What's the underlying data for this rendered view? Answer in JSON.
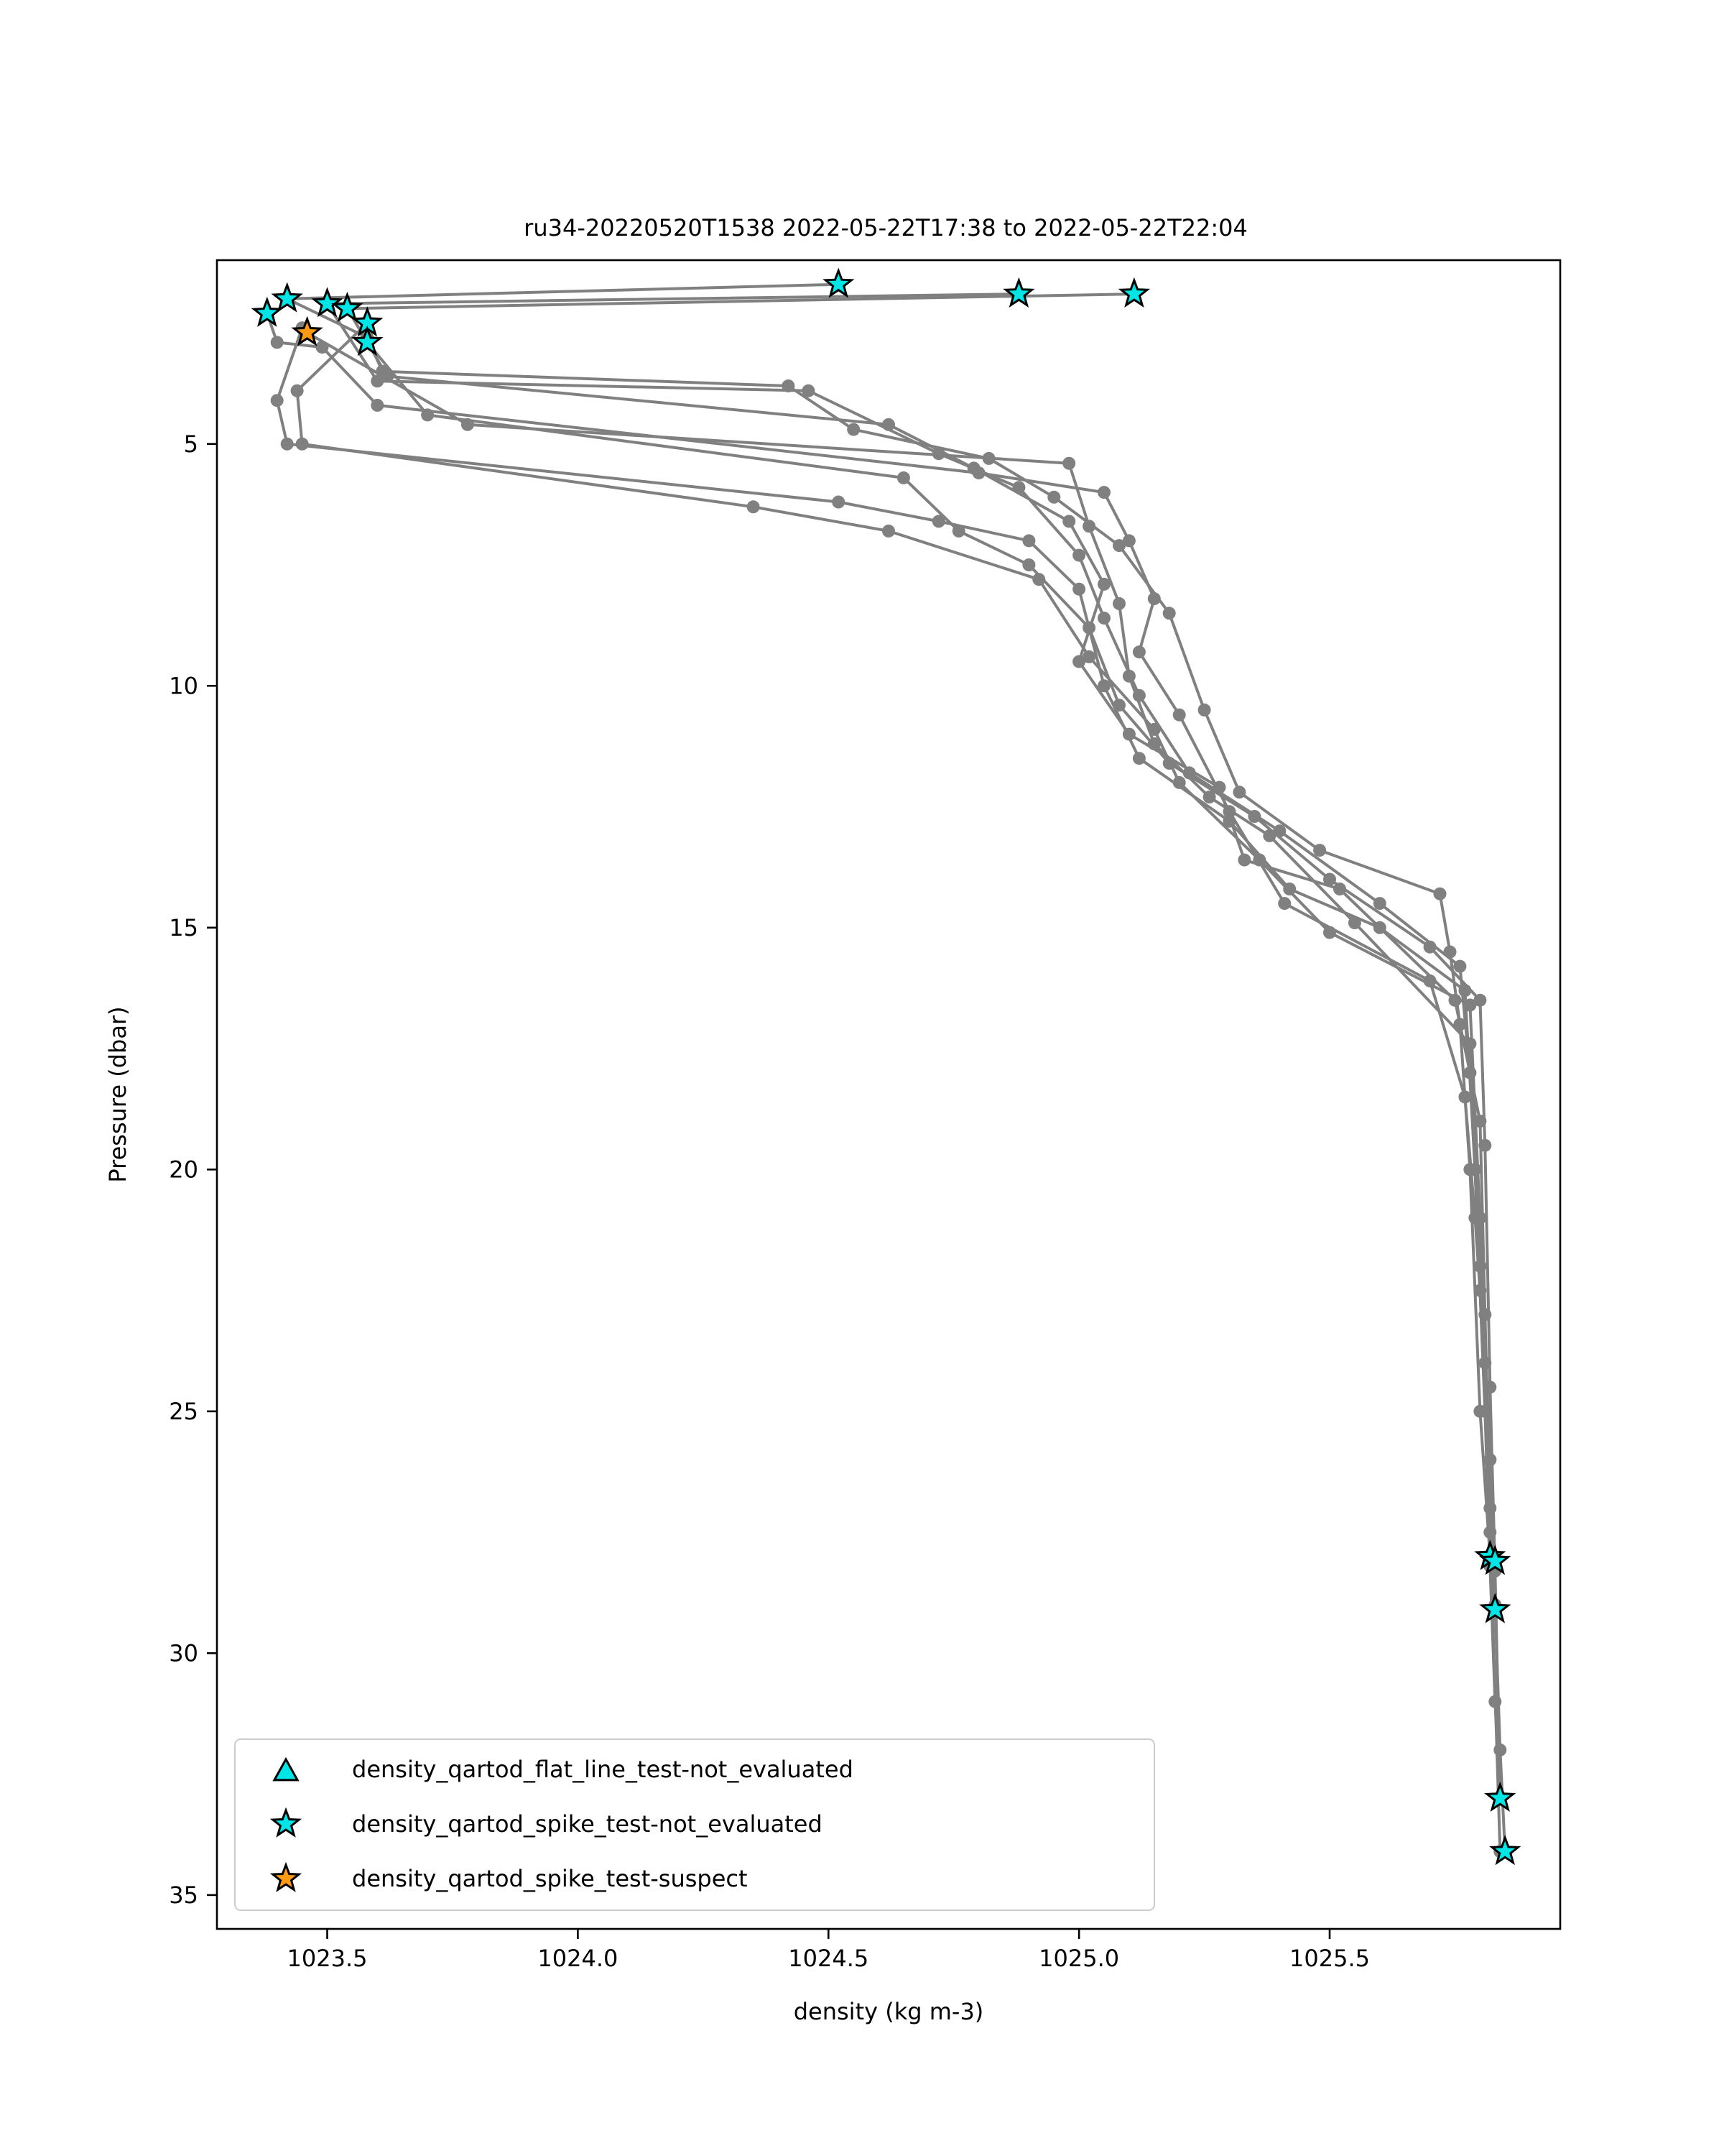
{
  "chart_data": {
    "type": "line",
    "title": "ru34-20220520T1538 2022-05-22T17:38 to 2022-05-22T22:04",
    "xlabel": "density (kg m-3)",
    "ylabel": "Pressure (dbar)",
    "xlim": [
      1023.28,
      1025.96
    ],
    "ylim": [
      35.7,
      1.2
    ],
    "y_inverted": true,
    "xticks": [
      1023.5,
      1024.0,
      1024.5,
      1025.0,
      1025.5
    ],
    "xtick_labels": [
      "1023.5",
      "1024.0",
      "1024.5",
      "1025.0",
      "1025.5"
    ],
    "yticks": [
      5,
      10,
      15,
      20,
      25,
      30,
      35
    ],
    "ytick_labels": [
      "5",
      "10",
      "15",
      "20",
      "25",
      "30",
      "35"
    ],
    "grid": false,
    "legend_position": "lower-left",
    "line_color": "#808080",
    "series": [
      {
        "values": [
          [
            1024.52,
            1.7
          ],
          [
            1023.42,
            2.0
          ],
          [
            1023.58,
            2.8
          ],
          [
            1023.61,
            3.5
          ],
          [
            1024.42,
            3.8
          ],
          [
            1024.55,
            4.7
          ],
          [
            1024.82,
            5.3
          ],
          [
            1024.95,
            6.1
          ],
          [
            1025.08,
            7.1
          ],
          [
            1025.18,
            8.5
          ],
          [
            1025.25,
            10.5
          ],
          [
            1025.32,
            12.2
          ],
          [
            1025.48,
            13.4
          ],
          [
            1025.72,
            14.3
          ],
          [
            1025.74,
            15.5
          ],
          [
            1025.76,
            17.0
          ],
          [
            1025.78,
            20.0
          ],
          [
            1025.8,
            25.0
          ],
          [
            1025.82,
            28.0
          ]
        ]
      },
      {
        "values": [
          [
            1024.88,
            1.9
          ],
          [
            1023.5,
            2.1
          ],
          [
            1023.6,
            3.7
          ],
          [
            1024.46,
            3.9
          ],
          [
            1024.72,
            5.2
          ],
          [
            1024.88,
            5.9
          ],
          [
            1025.0,
            7.3
          ],
          [
            1025.05,
            8.6
          ],
          [
            1025.12,
            10.2
          ],
          [
            1025.22,
            11.8
          ],
          [
            1025.4,
            13.0
          ],
          [
            1025.6,
            14.5
          ],
          [
            1025.76,
            15.8
          ],
          [
            1025.78,
            18.0
          ],
          [
            1025.8,
            22.0
          ],
          [
            1025.82,
            26.0
          ],
          [
            1025.83,
            28.1
          ]
        ]
      },
      {
        "values": [
          [
            1025.11,
            1.9
          ],
          [
            1023.54,
            2.2
          ],
          [
            1023.62,
            3.6
          ],
          [
            1024.62,
            4.6
          ],
          [
            1024.79,
            5.5
          ],
          [
            1024.98,
            6.6
          ],
          [
            1025.05,
            7.9
          ],
          [
            1025.0,
            9.5
          ],
          [
            1025.1,
            11.0
          ],
          [
            1025.28,
            12.1
          ],
          [
            1025.33,
            13.6
          ],
          [
            1025.52,
            14.2
          ],
          [
            1025.75,
            16.5
          ],
          [
            1025.8,
            19.0
          ],
          [
            1025.81,
            23.0
          ],
          [
            1025.82,
            27.0
          ],
          [
            1025.83,
            29.1
          ]
        ]
      },
      {
        "values": [
          [
            1023.38,
            2.3
          ],
          [
            1023.4,
            2.9
          ],
          [
            1023.49,
            3.0
          ],
          [
            1023.6,
            4.2
          ],
          [
            1024.8,
            5.6
          ],
          [
            1025.05,
            6.0
          ],
          [
            1025.1,
            7.0
          ],
          [
            1025.15,
            8.2
          ],
          [
            1025.12,
            9.3
          ],
          [
            1025.2,
            10.6
          ],
          [
            1025.3,
            12.6
          ],
          [
            1025.41,
            14.5
          ],
          [
            1025.7,
            16.1
          ],
          [
            1025.77,
            18.5
          ],
          [
            1025.79,
            21.0
          ],
          [
            1025.81,
            24.0
          ],
          [
            1025.82,
            28.0
          ]
        ]
      },
      {
        "values": [
          [
            1023.45,
            2.6
          ],
          [
            1023.4,
            4.1
          ],
          [
            1023.42,
            5.0
          ],
          [
            1024.52,
            6.2
          ],
          [
            1024.72,
            6.6
          ],
          [
            1024.9,
            7.0
          ],
          [
            1025.0,
            8.0
          ],
          [
            1025.05,
            10.0
          ],
          [
            1025.12,
            11.5
          ],
          [
            1025.3,
            12.8
          ],
          [
            1025.42,
            14.2
          ],
          [
            1025.6,
            15.0
          ],
          [
            1025.77,
            16.3
          ],
          [
            1025.79,
            20.0
          ],
          [
            1025.81,
            25.0
          ],
          [
            1025.82,
            28.2
          ],
          [
            1025.83,
            31.0
          ],
          [
            1025.84,
            33.0
          ]
        ]
      },
      {
        "values": [
          [
            1023.58,
            2.5
          ],
          [
            1023.44,
            3.9
          ],
          [
            1023.45,
            5.0
          ],
          [
            1024.35,
            6.3
          ],
          [
            1024.62,
            6.8
          ],
          [
            1024.92,
            7.8
          ],
          [
            1025.02,
            9.4
          ],
          [
            1025.15,
            10.9
          ],
          [
            1025.2,
            12.0
          ],
          [
            1025.36,
            13.6
          ],
          [
            1025.5,
            15.1
          ],
          [
            1025.78,
            16.6
          ],
          [
            1025.8,
            21.0
          ],
          [
            1025.82,
            26.0
          ],
          [
            1025.83,
            29.0
          ],
          [
            1025.84,
            32.0
          ],
          [
            1025.85,
            34.1
          ]
        ]
      },
      {
        "values": [
          [
            1023.58,
            2.9
          ],
          [
            1023.7,
            4.4
          ],
          [
            1024.65,
            5.7
          ],
          [
            1024.76,
            6.8
          ],
          [
            1024.9,
            7.5
          ],
          [
            1025.02,
            8.8
          ],
          [
            1025.08,
            10.4
          ],
          [
            1025.18,
            11.6
          ],
          [
            1025.35,
            12.7
          ],
          [
            1025.5,
            14.0
          ],
          [
            1025.7,
            15.4
          ],
          [
            1025.8,
            16.5
          ],
          [
            1025.81,
            19.5
          ],
          [
            1025.82,
            24.5
          ],
          [
            1025.83,
            28.3
          ],
          [
            1025.84,
            33.0
          ]
        ]
      },
      {
        "values": [
          [
            1023.46,
            2.7
          ],
          [
            1023.78,
            4.6
          ],
          [
            1024.98,
            5.4
          ],
          [
            1025.02,
            6.7
          ],
          [
            1025.08,
            8.3
          ],
          [
            1025.1,
            9.8
          ],
          [
            1025.15,
            11.2
          ],
          [
            1025.26,
            12.3
          ],
          [
            1025.38,
            13.1
          ],
          [
            1025.55,
            14.9
          ],
          [
            1025.78,
            17.4
          ],
          [
            1025.8,
            22.5
          ],
          [
            1025.82,
            27.5
          ],
          [
            1025.84,
            34.1
          ]
        ]
      }
    ],
    "flagged_points": [
      {
        "legend_index": 1,
        "points": [
          [
            1024.52,
            1.7
          ],
          [
            1024.88,
            1.9
          ],
          [
            1025.11,
            1.9
          ],
          [
            1023.42,
            2.0
          ],
          [
            1023.5,
            2.1
          ],
          [
            1023.54,
            2.2
          ],
          [
            1023.38,
            2.3
          ],
          [
            1023.58,
            2.5
          ],
          [
            1023.58,
            2.9
          ],
          [
            1025.82,
            28.0
          ],
          [
            1025.83,
            28.1
          ],
          [
            1025.83,
            29.1
          ],
          [
            1025.84,
            33.0
          ],
          [
            1025.85,
            34.1
          ]
        ]
      },
      {
        "legend_index": 2,
        "points": [
          [
            1023.46,
            2.7
          ]
        ]
      }
    ],
    "legend": [
      {
        "label": "density_qartod_flat_line_test-not_evaluated",
        "marker": "triangle",
        "color": "#00e5e5"
      },
      {
        "label": "density_qartod_spike_test-not_evaluated",
        "marker": "star",
        "color": "#00e5e5"
      },
      {
        "label": "density_qartod_spike_test-suspect",
        "marker": "star",
        "color": "#ff9a14"
      }
    ]
  }
}
